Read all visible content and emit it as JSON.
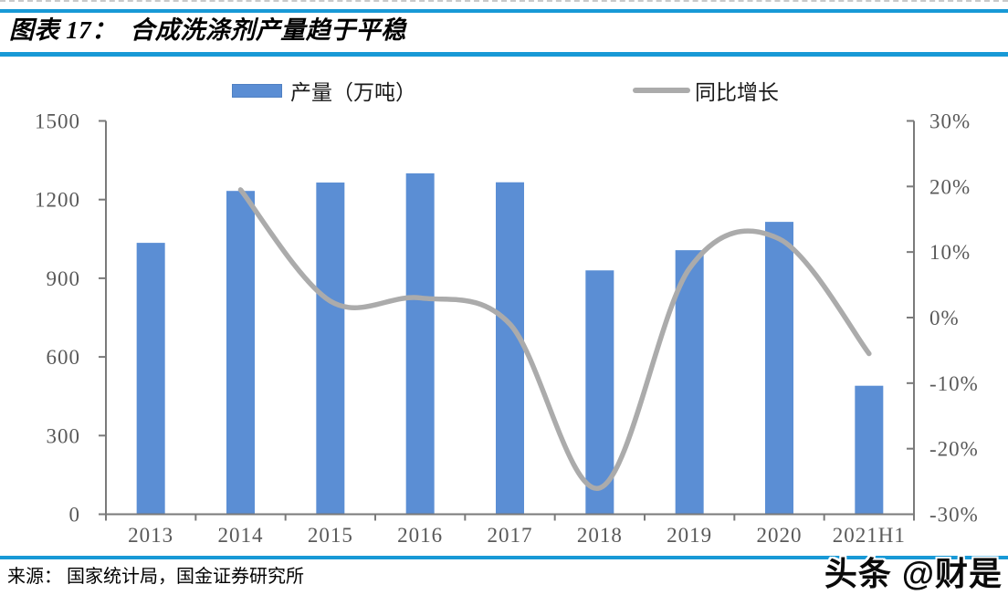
{
  "header": {
    "title": "图表 17：  合成洗涤剂产量趋于平稳"
  },
  "chart_data": {
    "type": "bar+line",
    "title": "合成洗涤剂产量趋于平稳",
    "categories": [
      "2013",
      "2014",
      "2015",
      "2016",
      "2017",
      "2018",
      "2019",
      "2020",
      "2021H1"
    ],
    "series": [
      {
        "name": "产量（万吨）",
        "type": "bar",
        "axis": "left",
        "values": [
          1035,
          1233,
          1265,
          1300,
          1266,
          930,
          1007,
          1115,
          490
        ]
      },
      {
        "name": "同比增长",
        "type": "line",
        "axis": "right",
        "values_pct": [
          null,
          19.5,
          2.5,
          3.0,
          -1.0,
          -26.0,
          7.5,
          12.0,
          -5.5
        ]
      }
    ],
    "left_axis": {
      "min": 0,
      "max": 1500,
      "ticks": [
        0,
        300,
        600,
        900,
        1200,
        1500
      ]
    },
    "right_axis": {
      "min": -30,
      "max": 30,
      "ticks": [
        "-30%",
        "-20%",
        "-10%",
        "0%",
        "10%",
        "20%",
        "30%"
      ]
    },
    "legend_position": "top",
    "grid": false
  },
  "colors": {
    "bar": "#5B8ED4",
    "bar_border": "#4F80C2",
    "line": "#ABABAB",
    "rule_blue": "#1899D6",
    "axis": "#7A7A7A",
    "tick_label": "#595959"
  },
  "footer": {
    "source": "来源： 国家统计局，国金证券研究所",
    "watermark": "头条 @财是"
  }
}
